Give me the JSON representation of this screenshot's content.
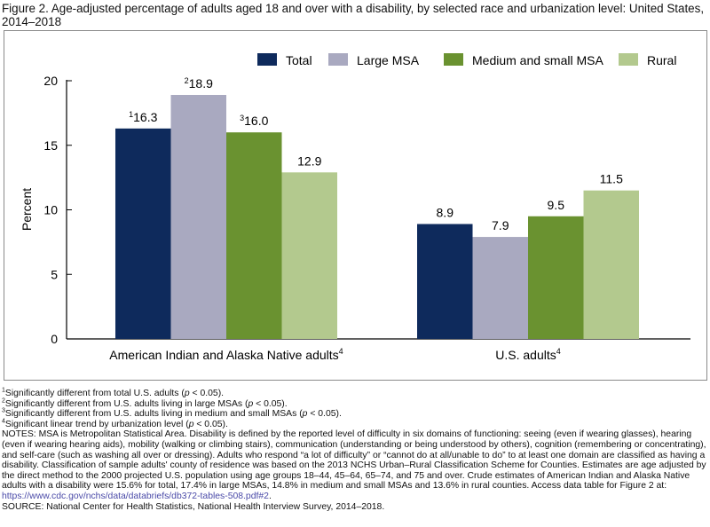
{
  "title": "Figure 2. Age-adjusted percentage of adults aged 18 and over with a disability, by selected race and urbanization level: United States, 2014–2018",
  "chart_data": {
    "type": "bar",
    "categories": [
      {
        "label": "American Indian and Alaska Native adults",
        "sup": "4"
      },
      {
        "label": "U.S. adults",
        "sup": "4"
      }
    ],
    "series": [
      {
        "name": "Total",
        "color": "#0e2a5c",
        "values": [
          16.3,
          8.9
        ],
        "label_sups": [
          "1",
          ""
        ]
      },
      {
        "name": "Large MSA",
        "color": "#a9a9c0",
        "values": [
          18.9,
          7.9
        ],
        "label_sups": [
          "2",
          ""
        ]
      },
      {
        "name": "Medium and small MSA",
        "color": "#6a9230",
        "values": [
          16.0,
          9.5
        ],
        "label_sups": [
          "3",
          ""
        ]
      },
      {
        "name": "Rural",
        "color": "#b3c98e",
        "values": [
          12.9,
          11.5
        ],
        "label_sups": [
          "",
          ""
        ]
      }
    ],
    "value_labels": [
      [
        "16.3",
        "8.9"
      ],
      [
        "18.9",
        "7.9"
      ],
      [
        "16.0",
        "9.5"
      ],
      [
        "12.9",
        "11.5"
      ]
    ],
    "ylabel": "Percent",
    "xlabel": "",
    "ylim": [
      0,
      20
    ],
    "yticks": [
      "0",
      "5",
      "10",
      "15",
      "20"
    ],
    "grid": false,
    "legend_position": "top-right"
  },
  "footnotes": [
    {
      "sup": "1",
      "pre": "Significantly different from total U.S. adults (",
      "p": "p",
      "post": " < 0.05)."
    },
    {
      "sup": "2",
      "pre": "Significantly different from U.S. adults living in large MSAs (",
      "p": "p",
      "post": " < 0.05)."
    },
    {
      "sup": "3",
      "pre": "Significantly different from U.S. adults living in medium and small MSAs (",
      "p": "p",
      "post": " < 0.05)."
    },
    {
      "sup": "4",
      "pre": "Significant linear trend by urbanization level (",
      "p": "p",
      "post": " < 0.05)."
    }
  ],
  "notes": "NOTES: MSA is Metropolitan Statistical Area. Disability is defined by the reported level of difficulty in six domains of functioning: seeing (even if wearing glasses), hearing (even if wearing hearing aids), mobility (walking or climbing stairs), communication (understanding or being understood by others), cognition (remembering or concentrating), and self-care (such as washing all over or dressing). Adults who respond “a lot of difficulty” or “cannot do at all/unable to do” to at least one domain are classified as having a disability. Classification of sample adults' county of residence was based on the 2013 NCHS Urban–Rural Classification Scheme for Counties. Estimates are age adjusted by the direct method to the 2000 projected U.S. population using age groups 18–44, 45–64, 65–74, and 75 and over. Crude estimates of American Indian and Alaska Native adults with a disability were 15.6% for total, 17.4% in large MSAs, 14.8% in medium and small MSAs and 13.6% in rural counties. Access data table for Figure 2 at: ",
  "notes_link": "https://www.cdc.gov/nchs/data/databriefs/db372-tables-508.pdf#2",
  "notes_end": ".",
  "source": "SOURCE: National Center for Health Statistics, National Health Interview Survey, 2014–2018."
}
